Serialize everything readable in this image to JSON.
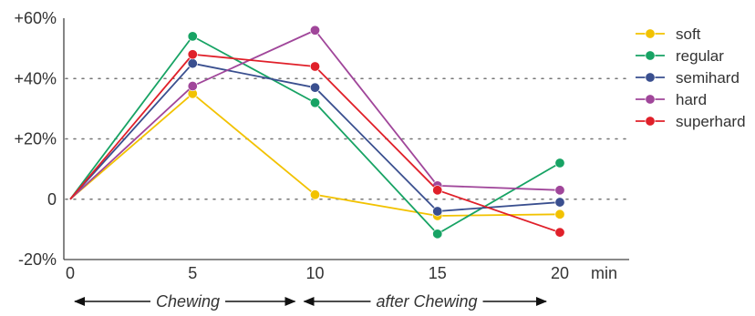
{
  "chart_data": {
    "type": "line",
    "title": "",
    "xlabel": "",
    "ylabel": "",
    "x": [
      0,
      5,
      10,
      15,
      20
    ],
    "x_unit_label": "min",
    "xlim": [
      0,
      20
    ],
    "ylim": [
      -20,
      60
    ],
    "y_ticks": [
      {
        "value": 60,
        "label": "+60%"
      },
      {
        "value": 40,
        "label": "+40%"
      },
      {
        "value": 20,
        "label": "+20%"
      },
      {
        "value": 0,
        "label": "0"
      },
      {
        "value": -20,
        "label": "-20%"
      }
    ],
    "x_ticks": [
      {
        "value": 0,
        "label": "0"
      },
      {
        "value": 5,
        "label": "5"
      },
      {
        "value": 10,
        "label": "10"
      },
      {
        "value": 15,
        "label": "15"
      },
      {
        "value": 20,
        "label": "20"
      }
    ],
    "grid": {
      "horizontal_dotted_at": [
        40,
        20,
        0
      ]
    },
    "legend_position": "right",
    "series": [
      {
        "name": "soft",
        "color": "#f2c200",
        "values": [
          0,
          35,
          1.5,
          -5.5,
          -5
        ]
      },
      {
        "name": "regular",
        "color": "#17a364",
        "values": [
          0,
          54,
          32,
          -11.5,
          12
        ]
      },
      {
        "name": "semihard",
        "color": "#3a4f8f",
        "values": [
          0,
          45,
          37,
          -4,
          -1
        ]
      },
      {
        "name": "hard",
        "color": "#a0469a",
        "values": [
          0,
          37.5,
          56,
          4.5,
          3
        ]
      },
      {
        "name": "superhard",
        "color": "#e0202a",
        "values": [
          0,
          48,
          44,
          3,
          -11
        ]
      }
    ],
    "phases": [
      {
        "label": "Chewing",
        "from": 0,
        "to": 10
      },
      {
        "label": "after Chewing",
        "from": 10,
        "to": 20
      }
    ]
  }
}
